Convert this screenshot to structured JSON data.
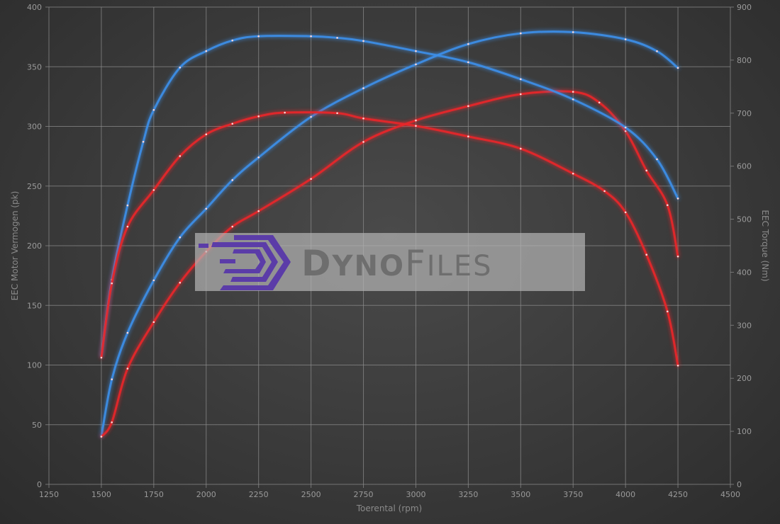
{
  "chart_data": {
    "type": "line",
    "xlabel": "Toerental (rpm)",
    "ylabel": "EEC Motor Vermogen (pk)",
    "y2label": "EEC Torque (Nm)",
    "xlim": [
      1250,
      4500
    ],
    "ylim": [
      0,
      400
    ],
    "y2lim": [
      0,
      900
    ],
    "xticks": [
      1250,
      1500,
      1750,
      2000,
      2250,
      2500,
      2750,
      3000,
      3250,
      3500,
      3750,
      4000,
      4250,
      4500
    ],
    "yticks": [
      0,
      50,
      100,
      150,
      200,
      250,
      300,
      350,
      400
    ],
    "y2ticks": [
      0,
      100,
      200,
      300,
      400,
      500,
      600,
      700,
      800,
      900
    ],
    "grid": true,
    "watermark": "DynoFiles",
    "series": [
      {
        "axis": "left",
        "color": "#3d8fe8",
        "x": [
          1500,
          1550,
          1625,
          1750,
          1875,
          2000,
          2125,
          2250,
          2500,
          2750,
          3000,
          3250,
          3500,
          3750,
          4000,
          4150,
          4250
        ],
        "y": [
          40,
          88,
          127,
          171,
          207,
          231,
          255,
          274,
          308,
          332,
          352,
          369,
          378,
          379,
          373,
          363,
          349
        ]
      },
      {
        "axis": "left",
        "color": "#e8262a",
        "x": [
          1500,
          1550,
          1625,
          1750,
          1875,
          2000,
          2125,
          2250,
          2500,
          2750,
          3000,
          3250,
          3500,
          3750,
          3875,
          4000,
          4100,
          4200,
          4250
        ],
        "y": [
          40,
          52,
          97,
          136,
          169,
          195,
          216,
          229,
          256,
          287,
          305,
          317,
          327,
          329,
          320,
          296,
          263,
          234,
          191
        ]
      },
      {
        "axis": "right",
        "color": "#3d8fe8",
        "x": [
          1500,
          1550,
          1625,
          1700,
          1750,
          1875,
          2000,
          2125,
          2250,
          2500,
          2625,
          2750,
          3000,
          3250,
          3500,
          3750,
          4000,
          4150,
          4250
        ],
        "y": [
          242,
          386,
          526,
          646,
          706,
          786,
          817,
          837,
          845,
          845,
          842,
          836,
          817,
          796,
          764,
          726,
          673,
          613,
          539
        ]
      },
      {
        "axis": "right",
        "color": "#e8262a",
        "x": [
          1500,
          1550,
          1625,
          1750,
          1875,
          2000,
          2125,
          2250,
          2375,
          2625,
          2750,
          3000,
          3250,
          3500,
          3750,
          3900,
          4000,
          4100,
          4200,
          4250
        ],
        "y": [
          239,
          379,
          486,
          555,
          619,
          660,
          680,
          694,
          701,
          700,
          690,
          676,
          656,
          633,
          586,
          553,
          513,
          433,
          326,
          224
        ]
      }
    ]
  }
}
